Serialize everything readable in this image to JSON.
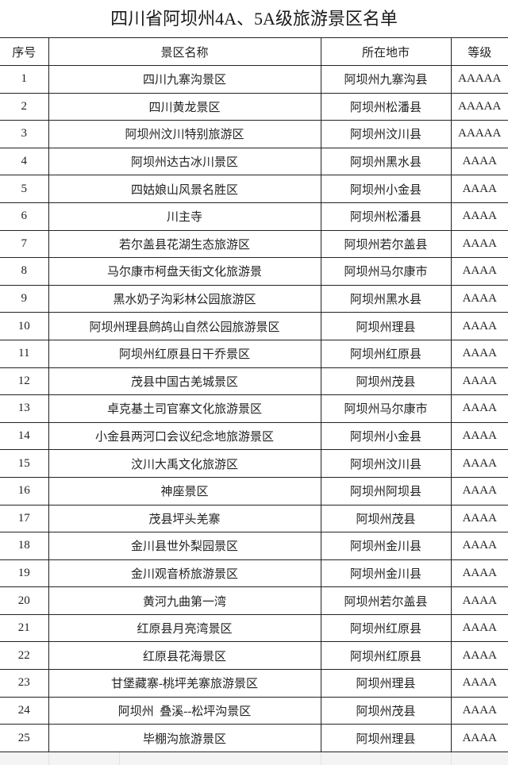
{
  "title": "四川省阿坝州4A、5A级旅游景区名单",
  "headers": [
    "序号",
    "景区名称",
    "所在地市",
    "等级"
  ],
  "rows": [
    [
      "1",
      "四川九寨沟景区",
      "阿坝州九寨沟县",
      "AAAAA"
    ],
    [
      "2",
      "四川黄龙景区",
      "阿坝州松潘县",
      "AAAAA"
    ],
    [
      "3",
      "阿坝州汶川特别旅游区",
      "阿坝州汶川县",
      "AAAAA"
    ],
    [
      "4",
      "阿坝州达古冰川景区",
      "阿坝州黑水县",
      "AAAA"
    ],
    [
      "5",
      "四姑娘山风景名胜区",
      "阿坝州小金县",
      "AAAA"
    ],
    [
      "6",
      "川主寺",
      "阿坝州松潘县",
      "AAAA"
    ],
    [
      "7",
      "若尔盖县花湖生态旅游区",
      "阿坝州若尔盖县",
      "AAAA"
    ],
    [
      "8",
      "马尔康市柯盘天街文化旅游景",
      "阿坝州马尔康市",
      "AAAA"
    ],
    [
      "9",
      "黑水奶子沟彩林公园旅游区",
      "阿坝州黑水县",
      "AAAA"
    ],
    [
      "10",
      "阿坝州理县鹧鸪山自然公园旅游景区",
      "阿坝州理县",
      "AAAA"
    ],
    [
      "11",
      "阿坝州红原县日干乔景区",
      "阿坝州红原县",
      "AAAA"
    ],
    [
      "12",
      "茂县中国古羌城景区",
      "阿坝州茂县",
      "AAAA"
    ],
    [
      "13",
      "卓克基土司官寨文化旅游景区",
      "阿坝州马尔康市",
      "AAAA"
    ],
    [
      "14",
      "小金县两河口会议纪念地旅游景区",
      "阿坝州小金县",
      "AAAA"
    ],
    [
      "15",
      "汶川大禹文化旅游区",
      "阿坝州汶川县",
      "AAAA"
    ],
    [
      "16",
      "神座景区",
      "阿坝州阿坝县",
      "AAAA"
    ],
    [
      "17",
      "茂县坪头羌寨",
      "阿坝州茂县",
      "AAAA"
    ],
    [
      "18",
      "金川县世外梨园景区",
      "阿坝州金川县",
      "AAAA"
    ],
    [
      "19",
      "金川观音桥旅游景区",
      "阿坝州金川县",
      "AAAA"
    ],
    [
      "20",
      "黄河九曲第一湾",
      "阿坝州若尔盖县",
      "AAAA"
    ],
    [
      "21",
      "红原县月亮湾景区",
      "阿坝州红原县",
      "AAAA"
    ],
    [
      "22",
      "红原县花海景区",
      "阿坝州红原县",
      "AAAA"
    ],
    [
      "23",
      "甘堡藏寨-桃坪羌寨旅游景区",
      "阿坝州理县",
      "AAAA"
    ],
    [
      "24",
      "阿坝州  叠溪--松坪沟景区",
      "阿坝州茂县",
      "AAAA"
    ],
    [
      "25",
      "毕棚沟旅游景区",
      "阿坝州理县",
      "AAAA"
    ]
  ]
}
